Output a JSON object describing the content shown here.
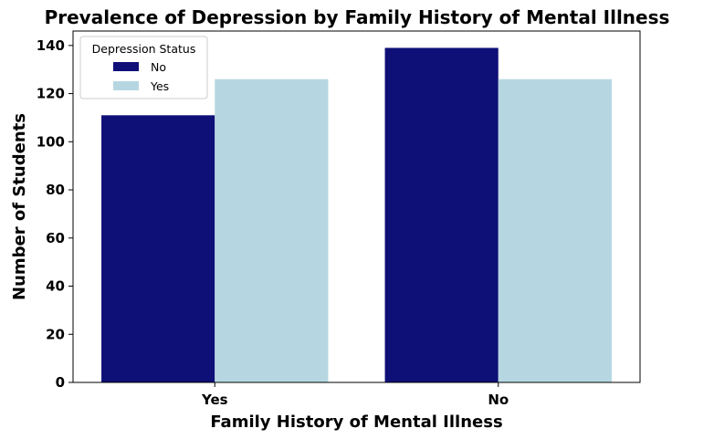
{
  "chart_data": {
    "type": "bar",
    "title": "Prevalence of Depression by Family History of Mental Illness",
    "xlabel": "Family History of Mental Illness",
    "ylabel": "Number of Students",
    "categories": [
      "Yes",
      "No"
    ],
    "series": [
      {
        "name": "No",
        "values": [
          111,
          139
        ],
        "color": "#0f0f78"
      },
      {
        "name": "Yes",
        "values": [
          126,
          126
        ],
        "color": "#b6d7e1"
      }
    ],
    "ylim": [
      0,
      146
    ],
    "yticks": [
      0,
      20,
      40,
      60,
      80,
      100,
      120,
      140
    ],
    "grid": false,
    "legend": {
      "title": "Depression Status",
      "placement": "top-left"
    }
  }
}
